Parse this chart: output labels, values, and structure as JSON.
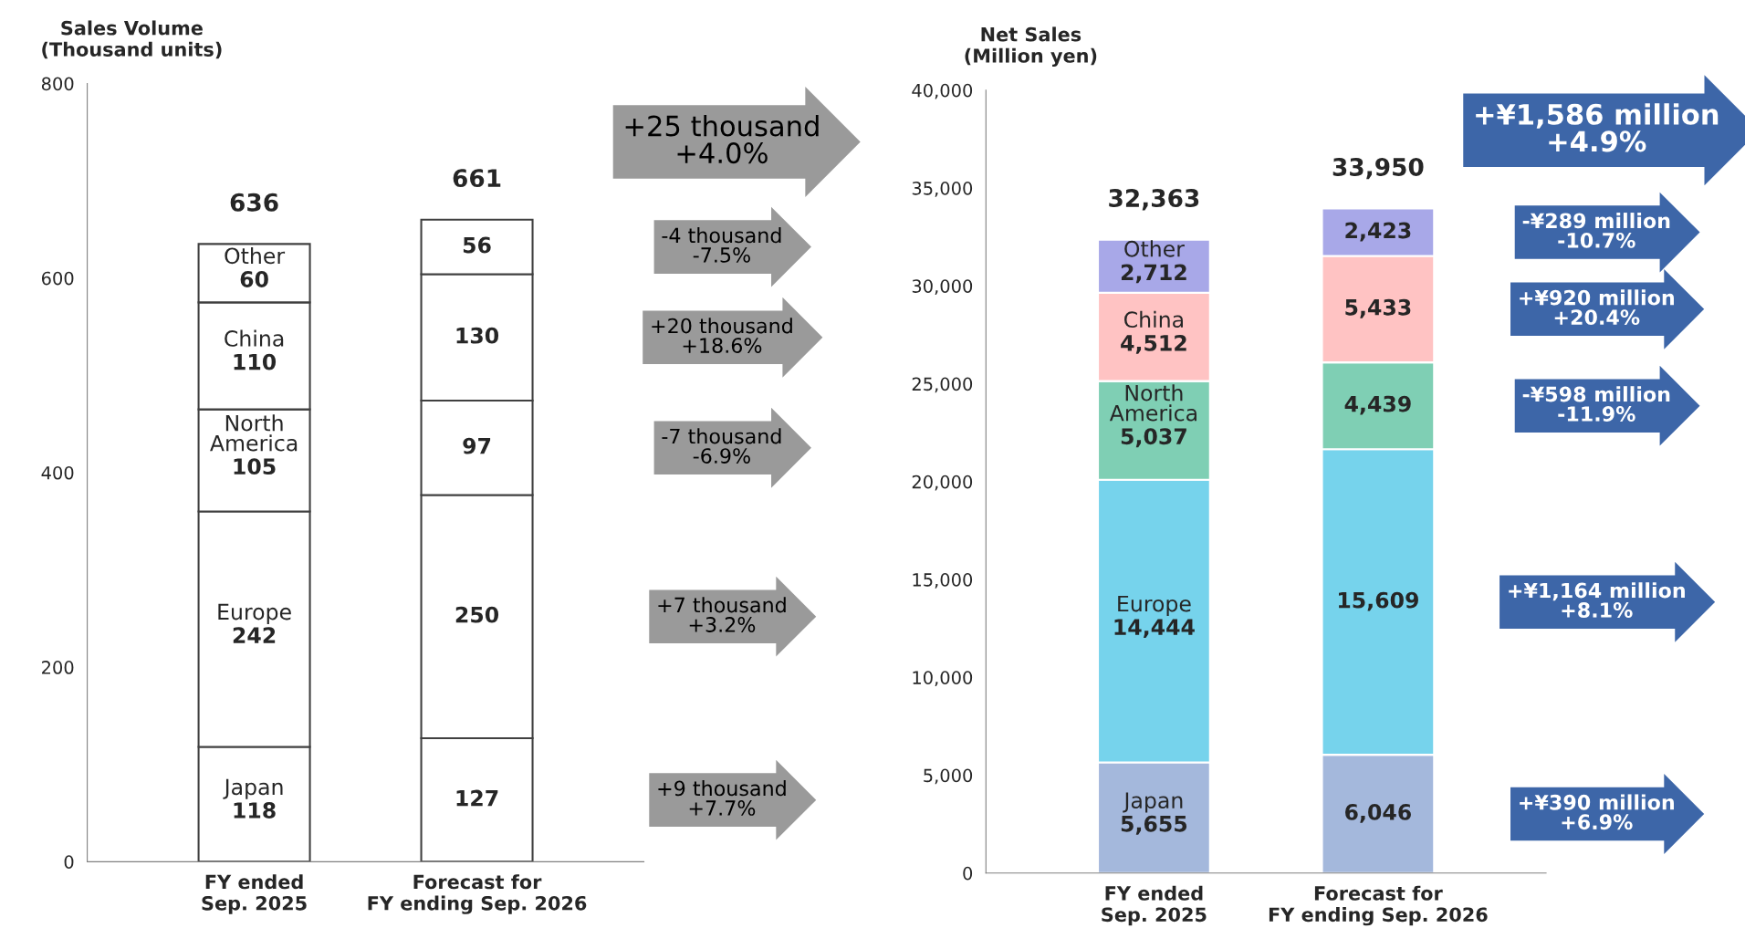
{
  "chart_data": [
    {
      "type": "bar",
      "stacked": true,
      "ylabel": "Sales Volume\n(Thousand units)",
      "categories": [
        "FY ended\nSep. 2025",
        "Forecast for\nFY ending Sep. 2026"
      ],
      "ylim": [
        0,
        800
      ],
      "yticks": [
        0,
        200,
        400,
        600,
        800
      ],
      "series": [
        {
          "name": "Japan",
          "color": "#ffffff",
          "values": [
            118,
            127
          ],
          "value_labels": [
            "118",
            "127"
          ]
        },
        {
          "name": "Europe",
          "color": "#ffffff",
          "values": [
            242,
            250
          ],
          "value_labels": [
            "242",
            "250"
          ]
        },
        {
          "name": "North\nAmerica",
          "color": "#ffffff",
          "values": [
            105,
            97
          ],
          "value_labels": [
            "105",
            "97"
          ]
        },
        {
          "name": "China",
          "color": "#ffffff",
          "values": [
            110,
            130
          ],
          "value_labels": [
            "110",
            "130"
          ]
        },
        {
          "name": "Other",
          "color": "#ffffff",
          "values": [
            60,
            56
          ],
          "value_labels": [
            "60",
            "56"
          ]
        }
      ],
      "totals": [
        "636",
        "661"
      ],
      "annotations": [
        "+25 thousand\n+4.0%",
        "-4 thousand\n-7.5%",
        "+20 thousand\n+18.6%",
        "-7 thousand\n-6.9%",
        "+7 thousand\n+3.2%",
        "+9 thousand\n+7.7%"
      ]
    },
    {
      "type": "bar",
      "stacked": true,
      "ylabel": "Net Sales\n(Million yen)",
      "categories": [
        "FY ended\nSep. 2025",
        "Forecast for\nFY ending Sep. 2026"
      ],
      "ylim": [
        0,
        40000
      ],
      "yticks": [
        0,
        {
          "value": 5000,
          "label": "5,000"
        },
        {
          "value": 10000,
          "label": "10,000"
        },
        {
          "value": 15000,
          "label": "15,000"
        },
        {
          "value": 20000,
          "label": "20,000"
        },
        {
          "value": 25000,
          "label": "25,000"
        },
        {
          "value": 30000,
          "label": "30,000"
        },
        {
          "value": 35000,
          "label": "35,000"
        },
        {
          "value": 40000,
          "label": "40,000"
        }
      ],
      "series": [
        {
          "name": "Japan",
          "color": "#a4b8dc",
          "values": [
            5655,
            6046
          ],
          "value_labels": [
            "5,655",
            "6,046"
          ]
        },
        {
          "name": "Europe",
          "color": "#76d3ec",
          "values": [
            14444,
            15609
          ],
          "value_labels": [
            "14,444",
            "15,609"
          ]
        },
        {
          "name": "North\nAmerica",
          "color": "#7fcfb4",
          "values": [
            5037,
            4439
          ],
          "value_labels": [
            "5,037",
            "4,439"
          ]
        },
        {
          "name": "China",
          "color": "#ffc3c3",
          "values": [
            4512,
            5433
          ],
          "value_labels": [
            "4,512",
            "5,433"
          ]
        },
        {
          "name": "Other",
          "color": "#a8a8e8",
          "values": [
            2712,
            2423
          ],
          "value_labels": [
            "2,712",
            "2,423"
          ]
        }
      ],
      "totals": [
        "32,363",
        "33,950"
      ],
      "annotations": [
        "+¥1,586 million\n+4.9%",
        "-¥289 million\n-10.7%",
        "+¥920 million\n+20.4%",
        "-¥598 million\n-11.9%",
        "+¥1,164 million\n+8.1%",
        "+¥390 million\n+6.9%"
      ]
    }
  ]
}
